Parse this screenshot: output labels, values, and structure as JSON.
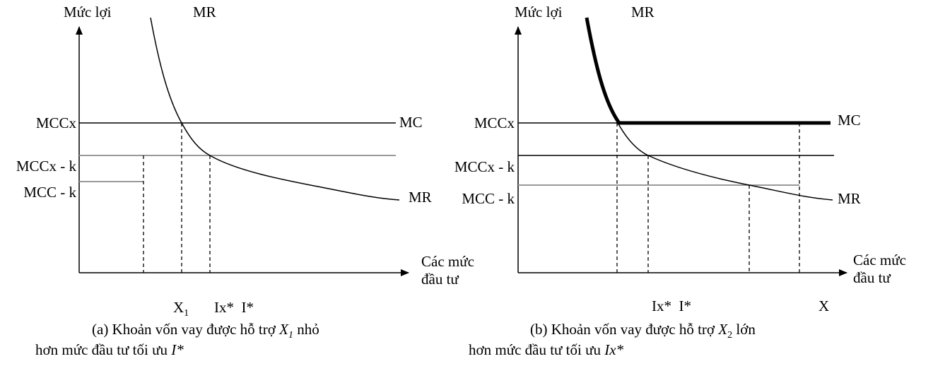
{
  "panel_a": {
    "y_label": "Mức lợi",
    "mr_top": "MR",
    "mccx": "MCCx",
    "mc": "MC",
    "mccx_k": "MCCx - k",
    "mcc_k": "MCC - k",
    "mr": "MR",
    "x_label_1": "Các mức",
    "x_label_2": "đầu tư",
    "x1_var": "X",
    "x1_sub": "1",
    "ix_i": "Ix*  I*",
    "caption": {
      "line1_prefix": "(a) Khoản vốn vay được hỗ trợ ",
      "line1_var": "X",
      "line1_sub": "1",
      "line1_suffix": " nhỏ",
      "line2_prefix": "hơn mức đầu tư tối ưu ",
      "line2_var": "I*"
    }
  },
  "panel_b": {
    "y_label": "Mức lợi",
    "mr_top": "MR",
    "mccx": "MCCx",
    "mc": "MC",
    "mccx_k": "MCCx - k",
    "mcc_k": "MCC - k",
    "mr": "MR",
    "x_label_1": "Các mức",
    "x_label_2": "đầu tư",
    "ix_i": "Ix*  I*",
    "x": "X",
    "caption": {
      "line1_prefix": "(b) Khoản vốn vay được hỗ trợ ",
      "line1_var": "X",
      "line1_sub": "2",
      "line1_suffix": " lớn",
      "line2_prefix": "hơn mức đầu tư tối ưu ",
      "line2_var": "Ix*"
    }
  }
}
